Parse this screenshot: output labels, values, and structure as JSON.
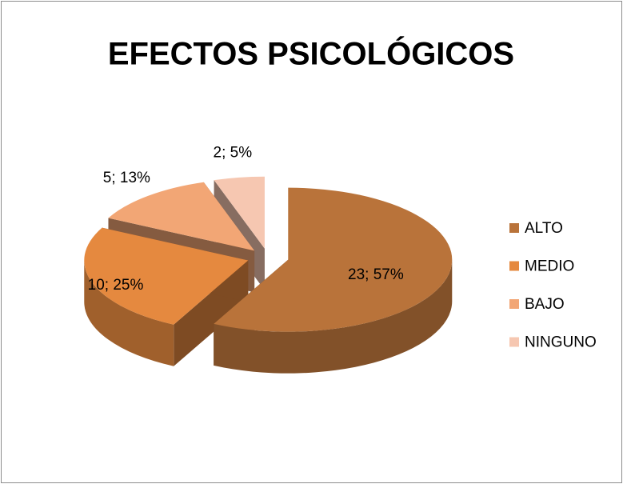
{
  "chart_data": {
    "type": "pie",
    "title": "EFECTOS PSICOLÓGICOS",
    "categories": [
      "ALTO",
      "MEDIO",
      "BAJO",
      "NINGUNO"
    ],
    "values": [
      23,
      10,
      5,
      2
    ],
    "value_labels": [
      "23; 57%",
      "10; 25%",
      "5; 13%",
      "2; 5%"
    ],
    "colors": [
      "#b9733a",
      "#e5893f",
      "#f2a675",
      "#f6c7b1"
    ],
    "legend": "right",
    "exploded": true,
    "three_d": true
  }
}
